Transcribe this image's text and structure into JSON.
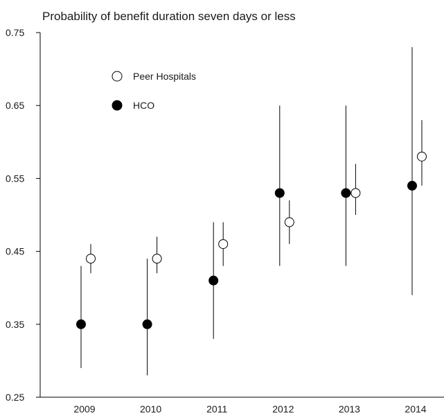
{
  "chart_data": {
    "type": "scatter",
    "title": "Probability of benefit duration seven days or less",
    "xlabel": "",
    "ylabel": "",
    "categories": [
      "2009",
      "2010",
      "2011",
      "2012",
      "2013",
      "2014"
    ],
    "ylim": [
      0.25,
      0.75
    ],
    "yticks": [
      "0.25",
      "0.35",
      "0.45",
      "0.55",
      "0.65",
      "0.75"
    ],
    "grid": false,
    "legend_position": "top-left",
    "series": [
      {
        "name": "Peer Hospitals",
        "marker": "open-circle",
        "color": "#000000",
        "values": [
          0.44,
          0.44,
          0.46,
          0.49,
          0.53,
          0.58
        ],
        "lower": [
          0.42,
          0.42,
          0.43,
          0.46,
          0.5,
          0.54
        ],
        "upper": [
          0.46,
          0.47,
          0.49,
          0.52,
          0.57,
          0.63
        ]
      },
      {
        "name": "HCO",
        "marker": "filled-circle",
        "color": "#000000",
        "values": [
          0.35,
          0.35,
          0.41,
          0.53,
          0.53,
          0.54
        ],
        "lower": [
          0.29,
          0.28,
          0.33,
          0.43,
          0.43,
          0.39
        ],
        "upper": [
          0.43,
          0.44,
          0.49,
          0.65,
          0.65,
          0.73
        ]
      }
    ]
  }
}
